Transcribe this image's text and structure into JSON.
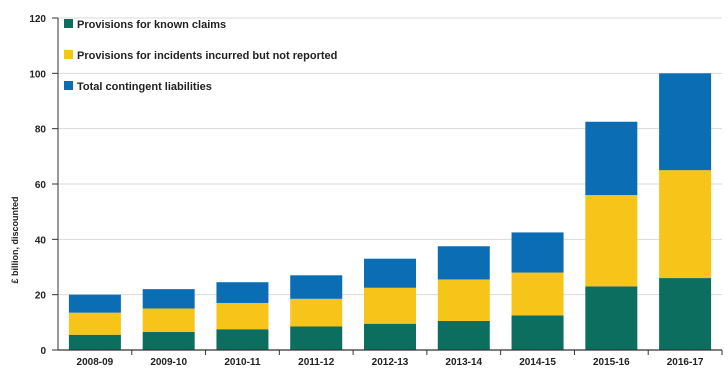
{
  "chart_data": {
    "type": "bar",
    "stacked": true,
    "categories": [
      "2008-09",
      "2009-10",
      "2010-11",
      "2011-12",
      "2012-13",
      "2013-14",
      "2014-15",
      "2015-16",
      "2016-17"
    ],
    "series": [
      {
        "name": "Provisions for known claims",
        "color": "#0b6e5f",
        "values": [
          5.5,
          6.5,
          7.5,
          8.5,
          9.5,
          10.5,
          12.5,
          23,
          26
        ]
      },
      {
        "name": "Provisions for incidents incurred but not reported",
        "color": "#f7c41a",
        "values": [
          8,
          8.5,
          9.5,
          10,
          13,
          15,
          15.5,
          33,
          39
        ]
      },
      {
        "name": "Total contingent liabilities",
        "color": "#0b6db4",
        "values": [
          6.5,
          7,
          7.5,
          8.5,
          10.5,
          12,
          14.5,
          26.5,
          35
        ]
      }
    ],
    "ylabel": "£ billion, discounted",
    "xlabel": "",
    "ylim": [
      0,
      120
    ],
    "yticks": [
      0,
      20,
      40,
      60,
      80,
      100,
      120
    ],
    "grid": true,
    "legend": "top-left"
  }
}
